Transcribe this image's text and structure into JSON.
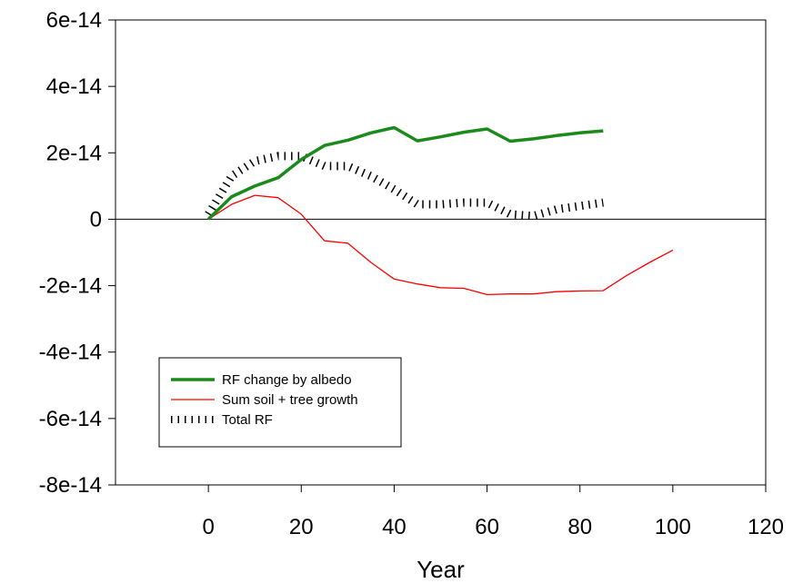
{
  "chart_data": {
    "type": "line",
    "title": "",
    "xlabel": "Year",
    "ylabel": "",
    "xlim": [
      -20,
      120
    ],
    "ylim": [
      -8e-14,
      6e-14
    ],
    "x_ticks": [
      0,
      20,
      40,
      60,
      80,
      100,
      120
    ],
    "x_tick_labels": [
      "0",
      "20",
      "40",
      "60",
      "80",
      "100",
      "120"
    ],
    "y_ticks": [
      6e-14,
      4e-14,
      2e-14,
      0,
      -2e-14,
      -4e-14,
      -6e-14,
      -8e-14
    ],
    "y_tick_labels": [
      "6e-14",
      "4e-14",
      "2e-14",
      "0",
      "-2e-14",
      "-4e-14",
      "-6e-14",
      "-8e-14"
    ],
    "zero_line": true,
    "grid": false,
    "legend_position": "bottom-left",
    "series": [
      {
        "name": "RF change by albedo",
        "color": "#1a8a1a",
        "style": "solid-thick",
        "x": [
          0,
          5,
          10,
          15,
          20,
          25,
          30,
          35,
          40,
          45,
          50,
          55,
          60,
          65,
          70,
          75,
          80,
          85
        ],
        "y": [
          0,
          6.8e-15,
          1e-14,
          1.25e-14,
          1.8e-14,
          2.22e-14,
          2.38e-14,
          2.6e-14,
          2.76e-14,
          2.36e-14,
          2.48e-14,
          2.62e-14,
          2.72e-14,
          2.35e-14,
          2.42e-14,
          2.52e-14,
          2.6e-14,
          2.66e-14
        ]
      },
      {
        "name": "Sum soil + tree growth",
        "color": "#ff0000",
        "style": "solid-thin",
        "x": [
          0,
          5,
          10,
          15,
          20,
          25,
          30,
          35,
          40,
          45,
          50,
          55,
          60,
          65,
          70,
          75,
          80,
          85,
          90,
          95,
          100
        ],
        "y": [
          0,
          4.5e-15,
          7.2e-15,
          6.5e-15,
          1.5e-15,
          -6.5e-15,
          -7.2e-15,
          -1.3e-14,
          -1.8e-14,
          -1.95e-14,
          -2.06e-14,
          -2.08e-14,
          -2.27e-14,
          -2.25e-14,
          -2.25e-14,
          -2.18e-14,
          -2.16e-14,
          -2.15e-14,
          -1.7e-14,
          -1.3e-14,
          -9.3e-15
        ]
      },
      {
        "name": "Total RF",
        "color": "#000000",
        "style": "dotted",
        "x": [
          0,
          5,
          10,
          15,
          20,
          25,
          30,
          35,
          40,
          45,
          50,
          55,
          60,
          65,
          70,
          75,
          80,
          85
        ],
        "y": [
          1.5e-15,
          1.3e-14,
          1.75e-14,
          1.9e-14,
          1.9e-14,
          1.6e-14,
          1.6e-14,
          1.3e-14,
          9e-15,
          4.5e-15,
          4.5e-15,
          5e-15,
          5e-15,
          1.5e-15,
          1e-15,
          3e-15,
          4e-15,
          5e-15
        ]
      }
    ]
  }
}
